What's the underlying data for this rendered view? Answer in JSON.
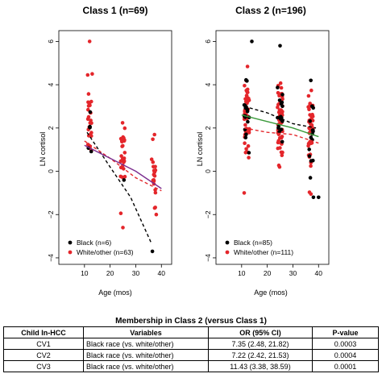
{
  "colors": {
    "black": "#000000",
    "red": "#e4262b",
    "purple": "#7b2d8e",
    "green": "#3a9a3a"
  },
  "chart_data": [
    {
      "type": "scatter",
      "title": "Class 1 (n=69)",
      "xlabel": "Age (mos)",
      "ylabel": "LN cortisol",
      "xlim": [
        0,
        44
      ],
      "ylim": [
        -4.3,
        6.5
      ],
      "yticks": [
        "6",
        "4",
        "2",
        "0",
        "−2",
        "−4"
      ],
      "xticks": [
        "10",
        "20",
        "30",
        "40"
      ],
      "legend_position": "bottom-left",
      "series": [
        {
          "name": "Black (n=6)",
          "color": "black",
          "fit": [
            [
              11,
              1.8
            ],
            [
              20,
              0.2
            ],
            [
              28,
              -1.2
            ],
            [
              36,
              -3.3
            ]
          ]
        },
        {
          "name": "White/other (n=63)",
          "color": "red",
          "fit": [
            [
              10,
              1.4
            ],
            [
              20,
              0.6
            ],
            [
              30,
              -0.3
            ],
            [
              40,
              -0.9
            ]
          ]
        },
        {
          "name": "",
          "color": "purple",
          "fit": [
            [
              10,
              1.2
            ],
            [
              20,
              0.6
            ],
            [
              30,
              0.0
            ],
            [
              40,
              -0.8
            ]
          ]
        }
      ],
      "clusters": [
        {
          "x": 12,
          "ymean": 1.9,
          "sd": 0.9,
          "red": 24,
          "black": 6,
          "xw": 0.8
        },
        {
          "x": 25,
          "ymean": 0.7,
          "sd": 1.0,
          "red": 26,
          "black": 1,
          "xw": 0.9
        },
        {
          "x": 37,
          "ymean": -0.2,
          "sd": 0.8,
          "red": 20,
          "black": 0,
          "xw": 0.8
        }
      ],
      "extremes": [
        [
          12,
          6.0,
          "red"
        ],
        [
          13,
          4.5,
          "red"
        ],
        [
          36.5,
          -3.7,
          "black"
        ],
        [
          25,
          -2.6,
          "red"
        ],
        [
          38,
          -2.0,
          "red"
        ]
      ]
    },
    {
      "type": "scatter",
      "title": "Class 2 (n=196)",
      "xlabel": "Age (mos)",
      "ylabel": "LN cortisol",
      "xlim": [
        0,
        44
      ],
      "ylim": [
        -4.3,
        6.5
      ],
      "yticks": [
        "6",
        "4",
        "2",
        "0",
        "−2",
        "−4"
      ],
      "xticks": [
        "10",
        "20",
        "30",
        "40"
      ],
      "legend_position": "bottom-left",
      "series": [
        {
          "name": "Black (n=85)",
          "color": "black",
          "fit": [
            [
              11,
              3.0
            ],
            [
              20,
              2.7
            ],
            [
              30,
              2.2
            ],
            [
              39,
              2.0
            ]
          ]
        },
        {
          "name": "White/other (n=111)",
          "color": "red",
          "fit": [
            [
              11,
              2.0
            ],
            [
              20,
              1.8
            ],
            [
              30,
              1.7
            ],
            [
              40,
              1.3
            ]
          ]
        },
        {
          "name": "",
          "color": "green",
          "fit": [
            [
              10,
              2.6
            ],
            [
              20,
              2.3
            ],
            [
              30,
              2.0
            ],
            [
              40,
              1.6
            ]
          ]
        }
      ],
      "clusters": [
        {
          "x": 12,
          "ymean": 2.5,
          "sd": 1.0,
          "red": 50,
          "black": 18,
          "xw": 1.0
        },
        {
          "x": 25,
          "ymean": 2.2,
          "sd": 1.0,
          "red": 50,
          "black": 16,
          "xw": 1.0
        },
        {
          "x": 37,
          "ymean": 1.8,
          "sd": 1.0,
          "red": 45,
          "black": 14,
          "xw": 1.0
        }
      ],
      "extremes": [
        [
          14,
          6.0,
          "black"
        ],
        [
          25,
          5.8,
          "black"
        ],
        [
          37,
          4.2,
          "black"
        ],
        [
          38,
          -1.2,
          "black"
        ],
        [
          40,
          -1.2,
          "black"
        ],
        [
          11,
          -1.0,
          "red"
        ]
      ]
    }
  ],
  "table": {
    "title": "Membership in Class 2 (versus Class 1)",
    "headers": [
      "Child In-HCC",
      "Variables",
      "OR (95% CI)",
      "P-value"
    ],
    "rows": [
      [
        "CV1",
        "Black race (vs. white/other)",
        "7.35 (2.48, 21.82)",
        "0.0003"
      ],
      [
        "CV2",
        "Black race (vs. white/other)",
        "7.22 (2.42, 21.53)",
        "0.0004"
      ],
      [
        "CV3",
        "Black race (vs. white/other)",
        "11.43 (3.38, 38.59)",
        "0.0001"
      ]
    ]
  }
}
